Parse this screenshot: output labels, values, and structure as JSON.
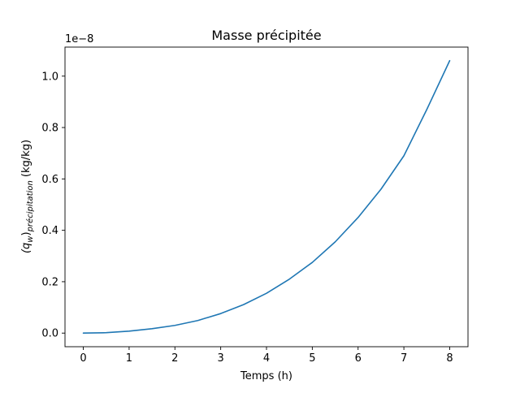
{
  "chart_data": {
    "type": "line",
    "title": "Masse précipitée",
    "xlabel": "Temps (h)",
    "ylabel_main": "(q",
    "ylabel_sub_w": "w",
    "ylabel_mid": ")",
    "ylabel_sub_prec": "précipitation",
    "ylabel_unit": " (kg/kg)",
    "offset_text": "1e−8",
    "xlim": [
      -0.4,
      8.4
    ],
    "ylim": [
      -0.053,
      1.113
    ],
    "xticks": [
      0,
      1,
      2,
      3,
      4,
      5,
      6,
      7,
      8
    ],
    "xtick_labels": [
      "0",
      "1",
      "2",
      "3",
      "4",
      "5",
      "6",
      "7",
      "8"
    ],
    "yticks": [
      0.0,
      0.2,
      0.4,
      0.6,
      0.8,
      1.0
    ],
    "ytick_labels": [
      "0.0",
      "0.2",
      "0.4",
      "0.6",
      "0.8",
      "1.0"
    ],
    "grid": false,
    "series": [
      {
        "color": "#1f77b4",
        "x": [
          0,
          0.5,
          1,
          1.5,
          2,
          2.5,
          3,
          3.5,
          4,
          4.5,
          5,
          5.5,
          6,
          6.5,
          7,
          7.5,
          8
        ],
        "y": [
          0.0,
          0.0016,
          0.0075,
          0.017,
          0.03,
          0.049,
          0.076,
          0.111,
          0.155,
          0.21,
          0.275,
          0.355,
          0.45,
          0.56,
          0.69,
          0.87,
          1.06
        ]
      }
    ]
  }
}
